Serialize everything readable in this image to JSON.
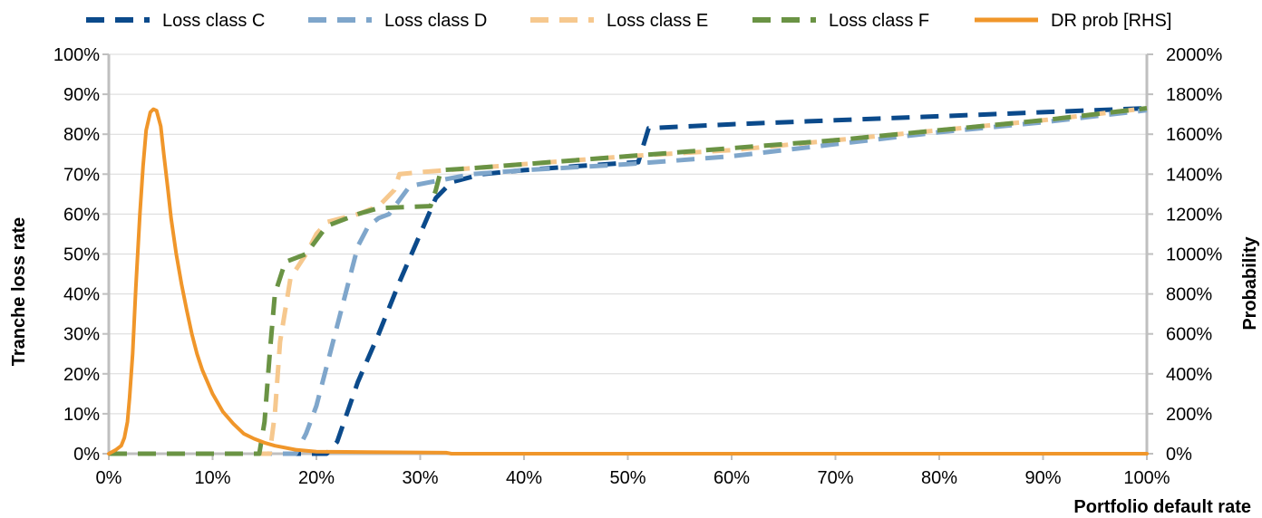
{
  "chart_data": {
    "type": "line",
    "xlabel": "Portfolio default rate",
    "ylabel": "Tranche loss rate",
    "y2label": "Probability",
    "xlim": [
      0,
      100
    ],
    "ylim": [
      0,
      100
    ],
    "y2lim": [
      0,
      2000
    ],
    "x_ticks": [
      "0%",
      "10%",
      "20%",
      "30%",
      "40%",
      "50%",
      "60%",
      "70%",
      "80%",
      "90%",
      "100%"
    ],
    "y_ticks": [
      "0%",
      "10%",
      "20%",
      "30%",
      "40%",
      "50%",
      "60%",
      "70%",
      "80%",
      "90%",
      "100%"
    ],
    "y2_ticks": [
      "0%",
      "200%",
      "400%",
      "600%",
      "800%",
      "1000%",
      "1200%",
      "1400%",
      "1600%",
      "1800%",
      "2000%"
    ],
    "grid": "horizontal",
    "legend_position": "top",
    "series": [
      {
        "name": "Loss class C",
        "color": "#0b4a8b",
        "dash": "dashed",
        "axis": "left",
        "x": [
          0,
          21,
          22,
          24,
          26,
          28,
          30,
          31.5,
          33,
          36,
          40,
          45,
          51,
          52,
          60,
          70,
          80,
          90,
          100
        ],
        "y": [
          0,
          0,
          3,
          18,
          30,
          43,
          55,
          64,
          68,
          70,
          71,
          72,
          73,
          81.5,
          82.5,
          83.5,
          84.5,
          85.5,
          86.5
        ]
      },
      {
        "name": "Loss class D",
        "color": "#7fa6cb",
        "dash": "dashed",
        "axis": "left",
        "x": [
          0,
          18,
          19,
          20,
          22,
          24,
          25,
          26,
          27,
          29,
          31,
          35,
          40,
          50,
          60,
          70,
          80,
          90,
          100
        ],
        "y": [
          0,
          0,
          5,
          12,
          32,
          52,
          57,
          59,
          60,
          67,
          68,
          70,
          71,
          72.5,
          74.5,
          77.5,
          80.5,
          83,
          86
        ]
      },
      {
        "name": "Loss class E",
        "color": "#f6c88e",
        "dash": "dashed",
        "axis": "left",
        "x": [
          0,
          15.5,
          16,
          16.5,
          17.5,
          19,
          20,
          21,
          24,
          26,
          27.5,
          28,
          30,
          35,
          40,
          50,
          60,
          70,
          80,
          90,
          100
        ],
        "y": [
          0,
          0,
          10,
          28,
          44,
          50,
          55,
          58,
          60,
          62,
          66,
          70,
          70.5,
          71.5,
          72.5,
          74.5,
          76,
          78.5,
          81,
          83.5,
          86.5
        ]
      },
      {
        "name": "Loss class F",
        "color": "#6a9344",
        "dash": "dashed",
        "axis": "left",
        "x": [
          0,
          14.5,
          15,
          15.5,
          16,
          17,
          19,
          21,
          24,
          26,
          31,
          31.5,
          32,
          35,
          40,
          50,
          60,
          70,
          80,
          90,
          100
        ],
        "y": [
          0,
          0,
          8,
          25,
          40,
          48,
          50,
          57,
          60,
          61.5,
          62,
          66,
          71,
          71.5,
          72.5,
          74.5,
          76.5,
          78.5,
          81,
          83.5,
          86.5
        ]
      },
      {
        "name": "DR prob [RHS]",
        "color": "#f0962a",
        "dash": "solid",
        "axis": "right",
        "x": [
          0,
          0.7,
          1.2,
          1.5,
          1.8,
          2.0,
          2.3,
          2.6,
          3.0,
          3.3,
          3.6,
          4.0,
          4.3,
          4.6,
          5.0,
          5.3,
          5.7,
          6.0,
          6.5,
          7.0,
          7.5,
          8.0,
          8.5,
          9.0,
          10,
          11,
          12,
          13,
          14,
          15,
          16,
          18,
          20,
          25,
          32.5,
          33,
          40,
          60,
          80,
          100
        ],
        "y": [
          0,
          20,
          40,
          80,
          160,
          280,
          500,
          830,
          1200,
          1440,
          1620,
          1710,
          1725,
          1718,
          1640,
          1500,
          1320,
          1180,
          1000,
          850,
          720,
          600,
          500,
          420,
          300,
          210,
          150,
          100,
          75,
          55,
          40,
          20,
          10,
          8,
          5,
          0,
          0,
          0,
          0,
          0
        ]
      }
    ]
  }
}
